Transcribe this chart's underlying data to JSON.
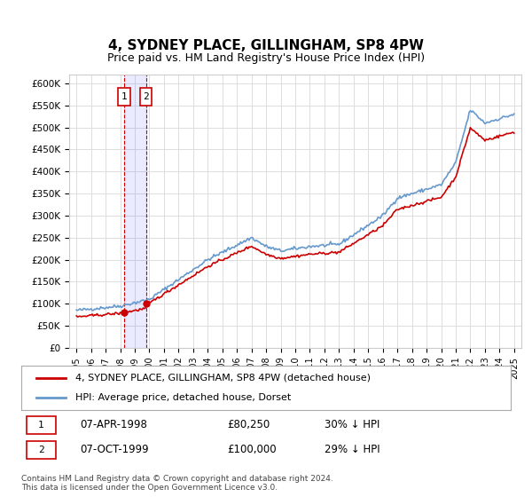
{
  "title": "4, SYDNEY PLACE, GILLINGHAM, SP8 4PW",
  "subtitle": "Price paid vs. HM Land Registry's House Price Index (HPI)",
  "xlabel": "",
  "ylabel": "",
  "ylim": [
    0,
    620000
  ],
  "yticks": [
    0,
    50000,
    100000,
    150000,
    200000,
    250000,
    300000,
    350000,
    400000,
    450000,
    500000,
    550000,
    600000
  ],
  "ytick_labels": [
    "£0",
    "£50K",
    "£100K",
    "£150K",
    "£200K",
    "£250K",
    "£300K",
    "£350K",
    "£400K",
    "£450K",
    "£500K",
    "£550K",
    "£600K"
  ],
  "hpi_color": "#6699cc",
  "price_color": "#cc0000",
  "purchase1_date": 1998.27,
  "purchase1_price": 80250,
  "purchase2_date": 1999.77,
  "purchase2_price": 100000,
  "legend_label1": "4, SYDNEY PLACE, GILLINGHAM, SP8 4PW (detached house)",
  "legend_label2": "HPI: Average price, detached house, Dorset",
  "table_row1": [
    "1",
    "07-APR-1998",
    "£80,250",
    "30% ↓ HPI"
  ],
  "table_row2": [
    "2",
    "07-OCT-1999",
    "£100,000",
    "29% ↓ HPI"
  ],
  "footnote": "Contains HM Land Registry data © Crown copyright and database right 2024.\nThis data is licensed under the Open Government Licence v3.0.",
  "background_color": "#ffffff",
  "grid_color": "#dddddd"
}
